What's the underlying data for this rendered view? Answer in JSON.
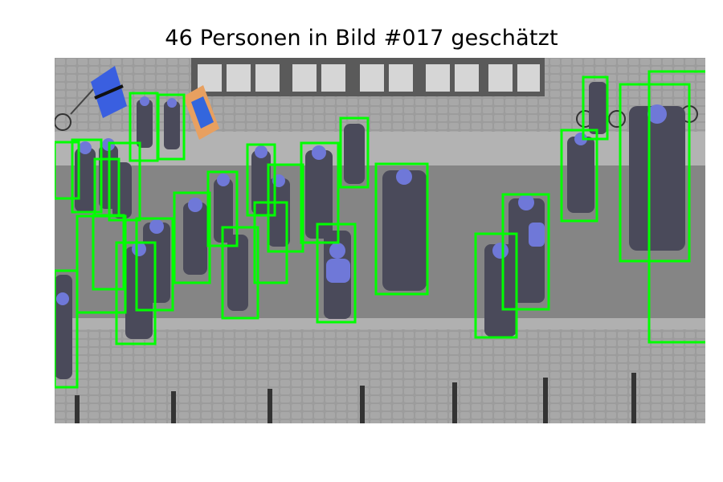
{
  "title": "46 Personen in Bild #017 geschätzt",
  "colors": {
    "box": "#00ff00",
    "road": "#8b8b8b",
    "sidewalk": "#aaaaaa",
    "cobblestone": "#9a9a9a",
    "person_tint": "#6f78d8"
  },
  "icons": [
    "flag-icon",
    "bicycle-icon",
    "bollard-icon"
  ]
}
